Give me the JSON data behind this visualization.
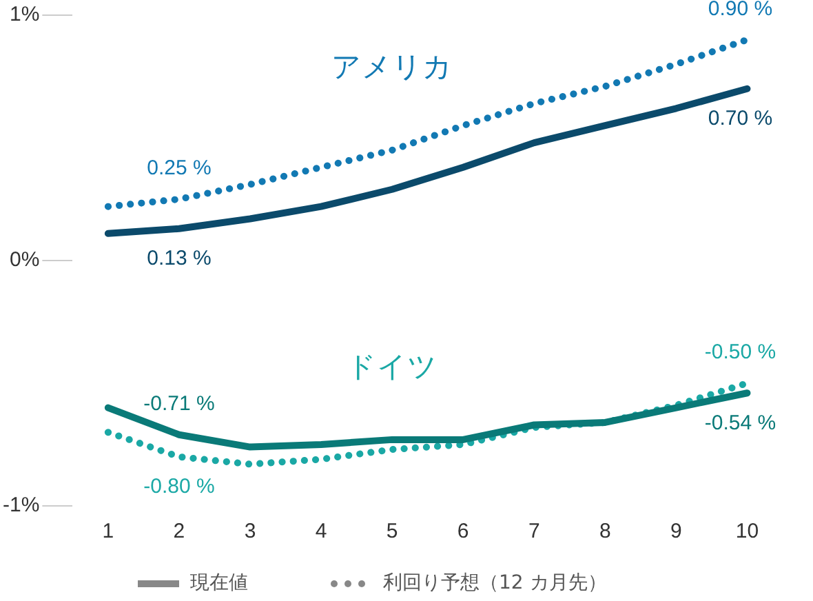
{
  "chart_data": {
    "type": "line",
    "categories": [
      "1",
      "2",
      "3",
      "4",
      "5",
      "6",
      "7",
      "8",
      "9",
      "10"
    ],
    "series": [
      {
        "color": "#0b4a6b",
        "line_style": "solid",
        "values": [
          0.11,
          0.13,
          0.17,
          0.22,
          0.29,
          0.38,
          0.48,
          0.55,
          0.62,
          0.7
        ],
        "value_labels": [
          null,
          "0.13 %",
          null,
          null,
          null,
          null,
          null,
          null,
          null,
          "0.70 %"
        ]
      },
      {
        "color": "#1279b3",
        "line_style": "dotted",
        "values": [
          0.22,
          0.25,
          0.31,
          0.38,
          0.45,
          0.55,
          0.64,
          0.71,
          0.8,
          0.9
        ],
        "value_labels": [
          null,
          "0.25 %",
          null,
          null,
          null,
          null,
          null,
          null,
          null,
          "0.90 %"
        ]
      },
      {
        "color": "#0a7a78",
        "line_style": "solid",
        "values": [
          -0.6,
          -0.71,
          -0.76,
          -0.75,
          -0.73,
          -0.73,
          -0.67,
          -0.66,
          -0.6,
          -0.54
        ],
        "value_labels": [
          null,
          "-0.71 %",
          null,
          null,
          null,
          null,
          null,
          null,
          null,
          "-0.54 %"
        ]
      },
      {
        "color": "#1aa8a5",
        "line_style": "dotted",
        "values": [
          -0.7,
          -0.8,
          -0.83,
          -0.81,
          -0.77,
          -0.75,
          -0.68,
          -0.66,
          -0.59,
          -0.5
        ],
        "value_labels": [
          null,
          "-0.80 %",
          null,
          null,
          null,
          null,
          null,
          null,
          null,
          "-0.50 %"
        ]
      }
    ],
    "ylim": [
      -1,
      1
    ],
    "yticks": [
      {
        "value": -1,
        "label": "-1%"
      },
      {
        "value": 0,
        "label": "0%"
      },
      {
        "value": 1,
        "label": "1%"
      }
    ],
    "grid": false,
    "marker": "none",
    "legend": false,
    "annotations": [
      "アメリカ",
      "ドイツ",
      "現在値",
      "利回り予想（12 カ月先）"
    ]
  }
}
